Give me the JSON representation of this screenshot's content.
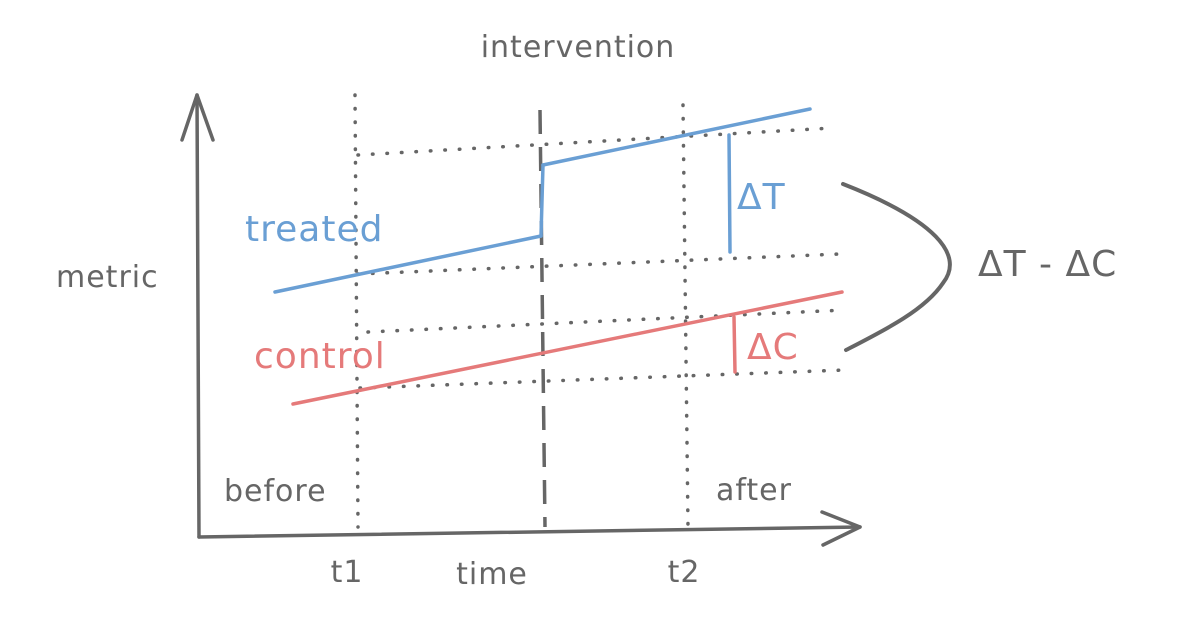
{
  "diagram": {
    "title": "intervention",
    "y_axis_label": "metric",
    "x_axis_label": "time",
    "ticks": {
      "t1": "t1",
      "t2": "t2"
    },
    "periods": {
      "before": "before",
      "after": "after"
    },
    "series": {
      "treated": {
        "label": "treated",
        "delta_label": "ΔT",
        "color": "#6a9fd4"
      },
      "control": {
        "label": "control",
        "delta_label": "ΔC",
        "color": "#e57a7a"
      }
    },
    "difference_label": "ΔT - ΔC",
    "colors": {
      "ink": "#666666"
    }
  }
}
